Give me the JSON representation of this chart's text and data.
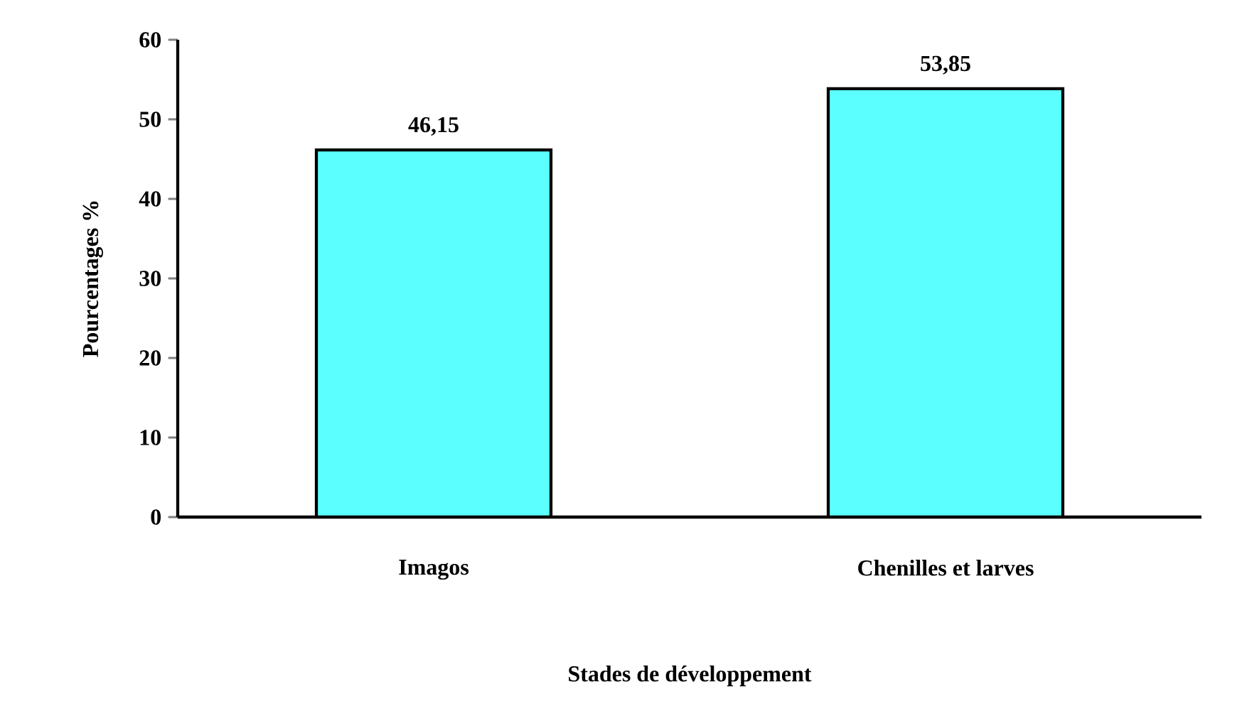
{
  "chart_data": {
    "type": "bar",
    "xlabel": "Stades de développement",
    "ylabel": "Pourcentages %",
    "categories": [
      "Imagos",
      "Chenilles et larves"
    ],
    "values": [
      46.15,
      53.85
    ],
    "value_labels": [
      "46,15",
      "53,85"
    ],
    "color": "#5cffff",
    "ylim": [
      0,
      60
    ],
    "yticks": [
      0,
      10,
      20,
      30,
      40,
      50,
      60
    ]
  }
}
